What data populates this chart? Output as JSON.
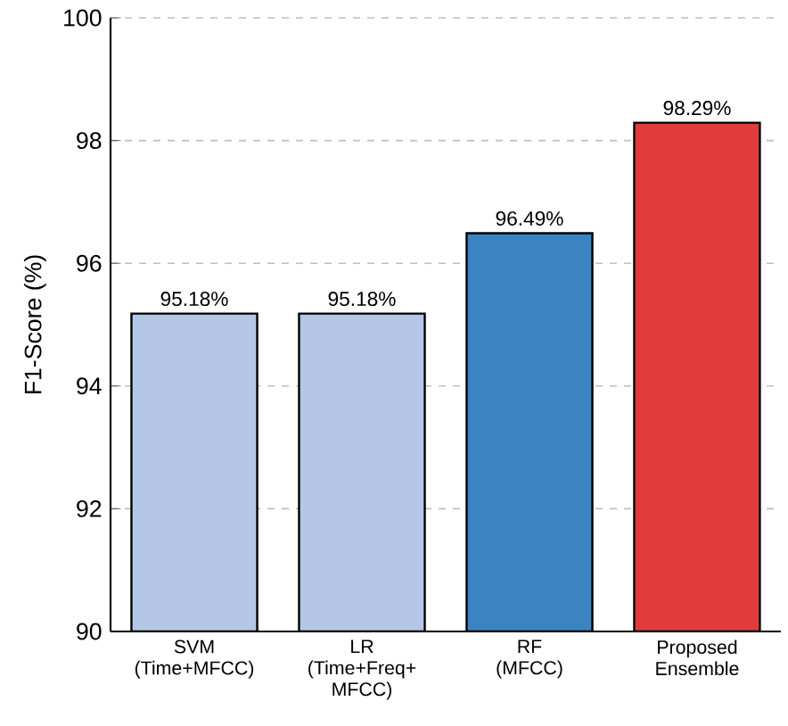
{
  "chart_data": {
    "type": "bar",
    "ylabel": "F1-Score (%)",
    "categories": [
      "SVM\n(Time+MFCC)",
      "LR\n(Time+Freq+\nMFCC)",
      "RF\n(MFCC)",
      "Proposed\nEnsemble"
    ],
    "values": [
      95.18,
      95.18,
      96.49,
      98.29
    ],
    "colors": [
      "#b4c7e7",
      "#b4c7e7",
      "#3a84c1",
      "#e03c3c"
    ],
    "value_labels": [
      "95.18%",
      "95.18%",
      "96.49%",
      "98.29%"
    ],
    "ylim": [
      90,
      100
    ],
    "yticks": [
      90,
      92,
      94,
      96,
      98,
      100
    ],
    "grid": "y"
  }
}
